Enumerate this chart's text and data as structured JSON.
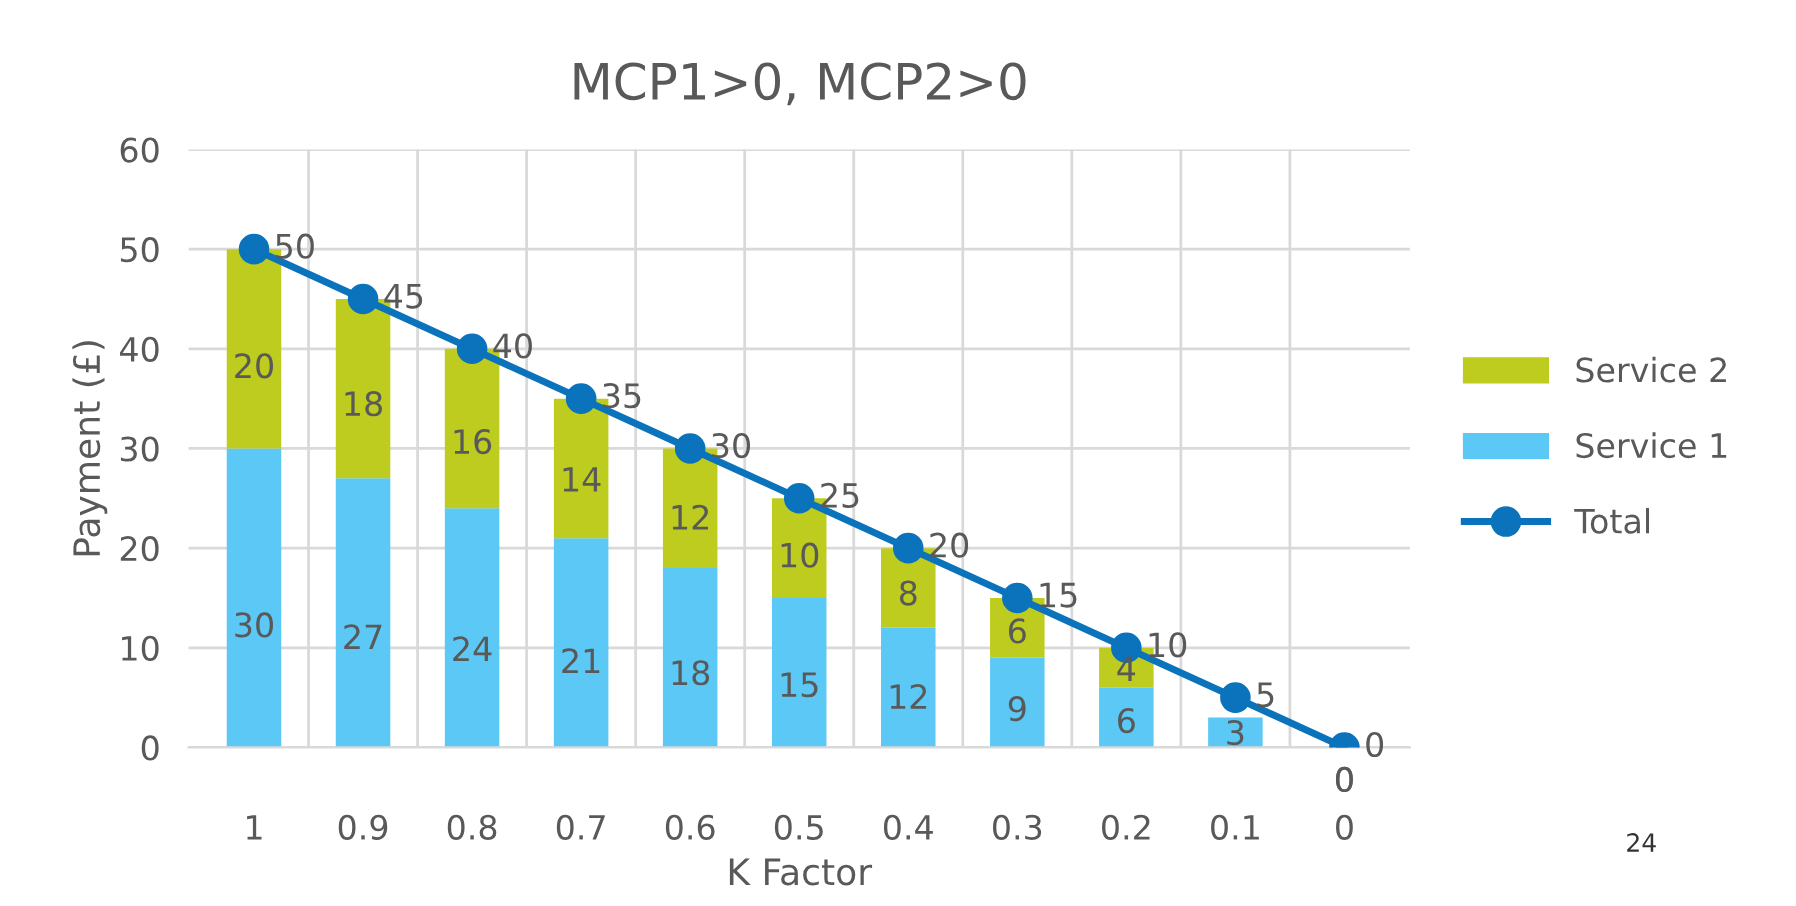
{
  "chart_data": {
    "type": "bar",
    "title": "MCP1>0, MCP2>0",
    "xlabel": "K Factor",
    "ylabel": "Payment (£)",
    "categories": [
      "1",
      "0.9",
      "0.8",
      "0.7",
      "0.6",
      "0.5",
      "0.4",
      "0.3",
      "0.2",
      "0.1",
      "0"
    ],
    "stacked": true,
    "series": [
      {
        "name": "Service 1",
        "color": "#5bc8f5",
        "values": [
          30,
          27,
          24,
          21,
          18,
          15,
          12,
          9,
          6,
          3,
          0
        ],
        "value_labels": [
          "30",
          "27",
          "24",
          "21",
          "18",
          "15",
          "12",
          "9",
          "6",
          "3",
          "0"
        ]
      },
      {
        "name": "Service 2",
        "color": "#bdcc1f",
        "values": [
          20,
          18,
          16,
          14,
          12,
          10,
          8,
          6,
          4,
          null,
          0
        ],
        "value_labels": [
          "20",
          "18",
          "16",
          "14",
          "12",
          "10",
          "8",
          "6",
          "4",
          null,
          "0"
        ]
      },
      {
        "name": "Total",
        "type": "line",
        "color": "#0a73bc",
        "marker": "circle",
        "values": [
          50,
          45,
          40,
          35,
          30,
          25,
          20,
          15,
          10,
          5,
          0
        ],
        "value_labels": [
          "50",
          "45",
          "40",
          "35",
          "30",
          "25",
          "20",
          "15",
          "10",
          "5",
          "0"
        ]
      }
    ],
    "ylim": [
      0,
      60
    ],
    "yticks": [
      0,
      10,
      20,
      30,
      40,
      50,
      60
    ],
    "grid": true,
    "legend": "right",
    "annotations": [
      "24"
    ]
  }
}
